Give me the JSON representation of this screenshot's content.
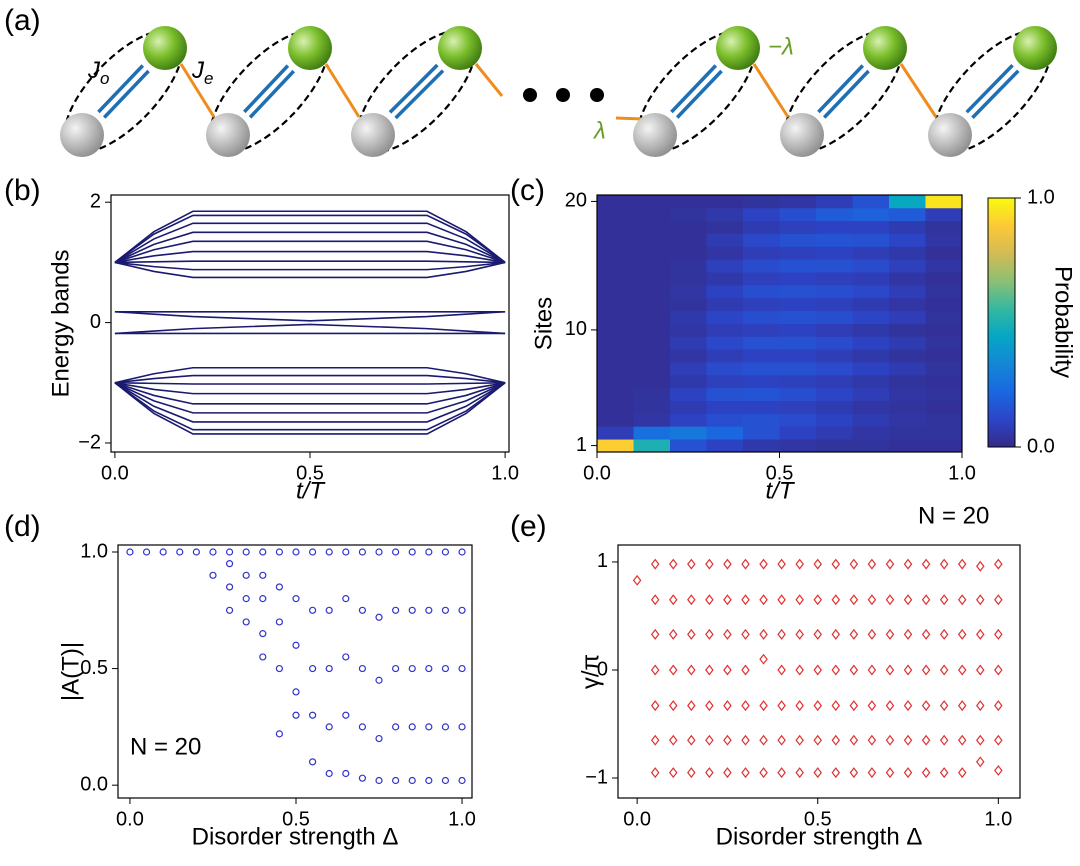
{
  "diagram": {
    "label": "(a)",
    "coupling_labels": [
      {
        "main": "J",
        "sub": "o"
      },
      {
        "main": "J",
        "sub": "e"
      }
    ],
    "lambda_labels": [
      "−λ",
      "λ"
    ]
  },
  "chart_data": [
    {
      "type": "line",
      "label": "(b)",
      "ylabel": "Energy bands",
      "xlabel": "t/T",
      "color": "#1a1a70",
      "x": [
        0,
        0.1,
        0.2,
        0.5,
        0.8,
        0.9,
        1
      ],
      "series": [
        {
          "values": [
            1,
            1.51,
            1.85,
            1.85,
            1.85,
            1.51,
            1
          ]
        },
        {
          "values": [
            1,
            1.47,
            1.78,
            1.78,
            1.78,
            1.47,
            1
          ]
        },
        {
          "values": [
            1,
            1.39,
            1.65,
            1.65,
            1.65,
            1.39,
            1
          ]
        },
        {
          "values": [
            1,
            1.3,
            1.5,
            1.5,
            1.5,
            1.3,
            1
          ]
        },
        {
          "values": [
            1,
            1.21,
            1.35,
            1.35,
            1.35,
            1.21,
            1
          ]
        },
        {
          "values": [
            1,
            1.11,
            1.18,
            1.18,
            1.18,
            1.11,
            1
          ]
        },
        {
          "values": [
            1,
            1.01,
            1.02,
            1.02,
            1.02,
            1.01,
            1
          ]
        },
        {
          "values": [
            1,
            0.93,
            0.88,
            0.88,
            0.88,
            0.93,
            1
          ]
        },
        {
          "values": [
            1,
            0.85,
            0.75,
            0.75,
            0.75,
            0.85,
            1
          ]
        },
        {
          "values": [
            0.18,
            0.18,
            0.18,
            0.18,
            0.18,
            0.18,
            0.18
          ]
        },
        {
          "values": [
            0.18,
            0.14,
            0.1,
            0.03,
            0.1,
            0.14,
            0.18
          ]
        },
        {
          "values": [
            -0.18,
            -0.14,
            -0.1,
            -0.03,
            -0.1,
            -0.14,
            -0.18
          ]
        },
        {
          "values": [
            -0.18,
            -0.18,
            -0.18,
            -0.18,
            -0.18,
            -0.18,
            -0.18
          ]
        },
        {
          "values": [
            -1,
            -0.85,
            -0.75,
            -0.75,
            -0.75,
            -0.85,
            -1
          ]
        },
        {
          "values": [
            -1,
            -0.93,
            -0.88,
            -0.88,
            -0.88,
            -0.93,
            -1
          ]
        },
        {
          "values": [
            -1,
            -1.01,
            -1.02,
            -1.02,
            -1.02,
            -1.01,
            -1
          ]
        },
        {
          "values": [
            -1,
            -1.11,
            -1.18,
            -1.18,
            -1.18,
            -1.11,
            -1
          ]
        },
        {
          "values": [
            -1,
            -1.21,
            -1.35,
            -1.35,
            -1.35,
            -1.21,
            -1
          ]
        },
        {
          "values": [
            -1,
            -1.3,
            -1.5,
            -1.5,
            -1.5,
            -1.3,
            -1
          ]
        },
        {
          "values": [
            -1,
            -1.39,
            -1.65,
            -1.65,
            -1.65,
            -1.39,
            -1
          ]
        },
        {
          "values": [
            -1,
            -1.47,
            -1.78,
            -1.78,
            -1.78,
            -1.47,
            -1
          ]
        },
        {
          "values": [
            -1,
            -1.51,
            -1.85,
            -1.85,
            -1.85,
            -1.51,
            -1
          ]
        }
      ],
      "xlim": [
        -0.01,
        1.01
      ],
      "xticks": [
        {
          "value": 0,
          "label": "0.0"
        },
        {
          "value": 0.5,
          "label": "0.5"
        },
        {
          "value": 1,
          "label": "1.0"
        }
      ],
      "ylim": [
        -2.15,
        2.12
      ],
      "yticks": [
        {
          "value": -2,
          "label": "−2"
        },
        0,
        2
      ]
    },
    {
      "type": "heatmap",
      "label": "(c)",
      "ylabel": "Sites",
      "xlabel": "t/T",
      "colorbar_label": "Probability",
      "colormap": [
        "#352a87",
        "#2c45c8",
        "#1a68e0",
        "#1387d6",
        "#06a6c4",
        "#35b8a0",
        "#8cbf74",
        "#d4bb55",
        "#fcc936",
        "#f9fb0e"
      ],
      "x": [
        0.05,
        0.15,
        0.25,
        0.35,
        0.45,
        0.55,
        0.65,
        0.75,
        0.85,
        0.95
      ],
      "y": [
        1,
        2,
        3,
        4,
        5,
        6,
        7,
        8,
        9,
        10,
        11,
        12,
        13,
        14,
        15,
        16,
        17,
        18,
        19,
        20
      ],
      "z": [
        [
          0.9,
          0.5,
          0.15,
          0.1,
          0.06,
          0.05,
          0.04,
          0.04,
          0.03,
          0.03
        ],
        [
          0.08,
          0.25,
          0.28,
          0.22,
          0.15,
          0.1,
          0.07,
          0.05,
          0.04,
          0.04
        ],
        [
          0.03,
          0.05,
          0.1,
          0.14,
          0.15,
          0.13,
          0.1,
          0.07,
          0.05,
          0.04
        ],
        [
          0.03,
          0.04,
          0.07,
          0.1,
          0.1,
          0.09,
          0.07,
          0.05,
          0.04,
          0.03
        ],
        [
          0.03,
          0.04,
          0.1,
          0.15,
          0.16,
          0.14,
          0.11,
          0.08,
          0.05,
          0.04
        ],
        [
          0.03,
          0.03,
          0.06,
          0.09,
          0.1,
          0.09,
          0.08,
          0.06,
          0.04,
          0.03
        ],
        [
          0.03,
          0.03,
          0.08,
          0.13,
          0.15,
          0.15,
          0.13,
          0.1,
          0.07,
          0.04
        ],
        [
          0.03,
          0.03,
          0.05,
          0.08,
          0.1,
          0.1,
          0.08,
          0.06,
          0.04,
          0.03
        ],
        [
          0.03,
          0.03,
          0.07,
          0.12,
          0.15,
          0.15,
          0.13,
          0.1,
          0.07,
          0.04
        ],
        [
          0.03,
          0.03,
          0.05,
          0.08,
          0.09,
          0.1,
          0.08,
          0.06,
          0.04,
          0.03
        ],
        [
          0.03,
          0.03,
          0.06,
          0.11,
          0.14,
          0.15,
          0.14,
          0.11,
          0.08,
          0.04
        ],
        [
          0.03,
          0.03,
          0.04,
          0.07,
          0.09,
          0.1,
          0.09,
          0.07,
          0.05,
          0.03
        ],
        [
          0.03,
          0.03,
          0.05,
          0.1,
          0.14,
          0.15,
          0.14,
          0.12,
          0.08,
          0.04
        ],
        [
          0.03,
          0.03,
          0.04,
          0.06,
          0.09,
          0.1,
          0.09,
          0.08,
          0.05,
          0.03
        ],
        [
          0.03,
          0.03,
          0.04,
          0.09,
          0.13,
          0.15,
          0.15,
          0.13,
          0.09,
          0.05
        ],
        [
          0.03,
          0.03,
          0.03,
          0.05,
          0.08,
          0.09,
          0.1,
          0.08,
          0.06,
          0.03
        ],
        [
          0.03,
          0.03,
          0.03,
          0.07,
          0.12,
          0.15,
          0.16,
          0.15,
          0.11,
          0.05
        ],
        [
          0.03,
          0.03,
          0.03,
          0.04,
          0.07,
          0.09,
          0.1,
          0.1,
          0.07,
          0.04
        ],
        [
          0.03,
          0.03,
          0.04,
          0.06,
          0.1,
          0.14,
          0.18,
          0.2,
          0.18,
          0.08
        ],
        [
          0.03,
          0.03,
          0.03,
          0.03,
          0.04,
          0.05,
          0.08,
          0.15,
          0.45,
          0.95
        ]
      ],
      "clim": [
        0,
        1
      ],
      "cticks": [
        {
          "value": 0,
          "label": "0.0"
        },
        {
          "value": 1,
          "label": "1.0"
        }
      ],
      "xlim": [
        0,
        1
      ],
      "xticks": [
        {
          "value": 0,
          "label": "0.0"
        },
        {
          "value": 0.5,
          "label": "0.5"
        },
        {
          "value": 1,
          "label": "1.0"
        }
      ],
      "ylim": [
        0.5,
        20.5
      ],
      "yticks": [
        1,
        10,
        20
      ]
    },
    {
      "type": "scatter",
      "label": "(d)",
      "ylabel": "|A(T)|",
      "xlabel": "Disorder strength Δ",
      "annotation": "N = 20",
      "color": "#3333cc",
      "marker": "circle",
      "x": [
        0,
        0.05,
        0.1,
        0.15,
        0.2,
        0.25,
        0.25,
        0.3,
        0.3,
        0.3,
        0.3,
        0.35,
        0.35,
        0.35,
        0.35,
        0.4,
        0.4,
        0.4,
        0.4,
        0.4,
        0.45,
        0.45,
        0.45,
        0.45,
        0.45,
        0.5,
        0.5,
        0.5,
        0.5,
        0.5,
        0.55,
        0.55,
        0.55,
        0.55,
        0.55,
        0.6,
        0.6,
        0.6,
        0.6,
        0.6,
        0.65,
        0.65,
        0.65,
        0.65,
        0.65,
        0.7,
        0.7,
        0.7,
        0.7,
        0.7,
        0.75,
        0.75,
        0.75,
        0.75,
        0.75,
        0.8,
        0.8,
        0.8,
        0.8,
        0.8,
        0.85,
        0.85,
        0.85,
        0.85,
        0.85,
        0.9,
        0.9,
        0.9,
        0.9,
        0.9,
        0.95,
        0.95,
        0.95,
        0.95,
        0.95,
        1,
        1,
        1,
        1,
        1
      ],
      "values": [
        1,
        1,
        1,
        1,
        1,
        1,
        0.9,
        1,
        0.95,
        0.85,
        0.75,
        1,
        0.9,
        0.8,
        0.7,
        1,
        0.9,
        0.8,
        0.65,
        0.55,
        1,
        0.85,
        0.7,
        0.5,
        0.22,
        1,
        0.8,
        0.6,
        0.4,
        0.3,
        1,
        0.75,
        0.5,
        0.3,
        0.1,
        1,
        0.75,
        0.5,
        0.25,
        0.05,
        1,
        0.8,
        0.55,
        0.3,
        0.05,
        1,
        0.75,
        0.5,
        0.25,
        0.03,
        1,
        0.72,
        0.45,
        0.2,
        0.02,
        1,
        0.75,
        0.5,
        0.25,
        0.02,
        1,
        0.75,
        0.5,
        0.25,
        0.02,
        1,
        0.75,
        0.5,
        0.25,
        0.02,
        1,
        0.75,
        0.5,
        0.25,
        0.02,
        1,
        0.75,
        0.5,
        0.25,
        0.02
      ],
      "xlim": [
        -0.036,
        1.03
      ],
      "xticks": [
        {
          "value": 0,
          "label": "0.0"
        },
        {
          "value": 0.5,
          "label": "0.5"
        },
        {
          "value": 1,
          "label": "1.0"
        }
      ],
      "ylim": [
        -0.055,
        1.03
      ],
      "yticks": [
        {
          "value": 0,
          "label": "0.0"
        },
        {
          "value": 0.5,
          "label": "0.5"
        },
        {
          "value": 1,
          "label": "1.0"
        }
      ]
    },
    {
      "type": "scatter",
      "label": "(e)",
      "ylabel": "γ/π",
      "xlabel": "Disorder strength Δ",
      "annotation": "N = 20",
      "color": "#e03030",
      "marker": "diamond",
      "x": [
        0,
        0.05,
        0.05,
        0.05,
        0.05,
        0.05,
        0.05,
        0.05,
        0.1,
        0.1,
        0.1,
        0.1,
        0.1,
        0.1,
        0.1,
        0.15,
        0.15,
        0.15,
        0.15,
        0.15,
        0.15,
        0.15,
        0.2,
        0.2,
        0.2,
        0.2,
        0.2,
        0.2,
        0.2,
        0.25,
        0.25,
        0.25,
        0.25,
        0.25,
        0.25,
        0.25,
        0.3,
        0.3,
        0.3,
        0.3,
        0.3,
        0.3,
        0.3,
        0.35,
        0.35,
        0.35,
        0.35,
        0.35,
        0.35,
        0.35,
        0.4,
        0.4,
        0.4,
        0.4,
        0.4,
        0.4,
        0.4,
        0.45,
        0.45,
        0.45,
        0.45,
        0.45,
        0.45,
        0.45,
        0.5,
        0.5,
        0.5,
        0.5,
        0.5,
        0.5,
        0.5,
        0.55,
        0.55,
        0.55,
        0.55,
        0.55,
        0.55,
        0.55,
        0.6,
        0.6,
        0.6,
        0.6,
        0.6,
        0.6,
        0.6,
        0.65,
        0.65,
        0.65,
        0.65,
        0.65,
        0.65,
        0.65,
        0.7,
        0.7,
        0.7,
        0.7,
        0.7,
        0.7,
        0.7,
        0.75,
        0.75,
        0.75,
        0.75,
        0.75,
        0.75,
        0.75,
        0.8,
        0.8,
        0.8,
        0.8,
        0.8,
        0.8,
        0.8,
        0.85,
        0.85,
        0.85,
        0.85,
        0.85,
        0.85,
        0.85,
        0.9,
        0.9,
        0.9,
        0.9,
        0.9,
        0.9,
        0.9,
        0.95,
        0.95,
        0.95,
        0.95,
        0.95,
        0.95,
        0.95,
        1,
        1,
        1,
        1,
        1,
        1,
        1
      ],
      "values": [
        0.83,
        0.98,
        0.65,
        0.33,
        0,
        -0.33,
        -0.65,
        -0.95,
        0.98,
        0.65,
        0.33,
        0,
        -0.33,
        -0.65,
        -0.95,
        0.98,
        0.65,
        0.33,
        0,
        -0.33,
        -0.65,
        -0.95,
        0.98,
        0.65,
        0.33,
        0,
        -0.33,
        -0.65,
        -0.95,
        0.98,
        0.65,
        0.33,
        0,
        -0.33,
        -0.65,
        -0.95,
        0.98,
        0.65,
        0.33,
        0,
        -0.33,
        -0.65,
        -0.95,
        0.98,
        0.65,
        0.33,
        0.1,
        -0.33,
        -0.65,
        -0.95,
        0.98,
        0.65,
        0.33,
        0,
        -0.33,
        -0.65,
        -0.95,
        0.98,
        0.65,
        0.33,
        0,
        -0.33,
        -0.65,
        -0.95,
        0.98,
        0.65,
        0.33,
        0,
        -0.33,
        -0.65,
        -0.95,
        0.98,
        0.65,
        0.33,
        0,
        -0.33,
        -0.65,
        -0.95,
        0.98,
        0.65,
        0.33,
        0,
        -0.33,
        -0.65,
        -0.95,
        0.98,
        0.65,
        0.33,
        0,
        -0.33,
        -0.65,
        -0.95,
        0.98,
        0.65,
        0.33,
        0,
        -0.33,
        -0.65,
        -0.95,
        0.98,
        0.65,
        0.33,
        0,
        -0.33,
        -0.65,
        -0.95,
        0.98,
        0.65,
        0.33,
        0,
        -0.33,
        -0.65,
        -0.95,
        0.98,
        0.65,
        0.33,
        0,
        -0.33,
        -0.65,
        -0.95,
        0.98,
        0.65,
        0.33,
        0,
        -0.33,
        -0.65,
        -0.95,
        0.96,
        0.65,
        0.33,
        0,
        -0.33,
        -0.65,
        -0.85,
        0.98,
        0.65,
        0.33,
        0,
        -0.33,
        -0.65,
        -0.93
      ],
      "xlim": [
        -0.053,
        1.06
      ],
      "xticks": [
        {
          "value": 0,
          "label": "0.0"
        },
        {
          "value": 0.5,
          "label": "0.5"
        },
        {
          "value": 1,
          "label": "1.0"
        }
      ],
      "ylim": [
        -1.185,
        1.157
      ],
      "yticks": [
        {
          "value": -1,
          "label": "−1"
        },
        0,
        1
      ]
    }
  ]
}
